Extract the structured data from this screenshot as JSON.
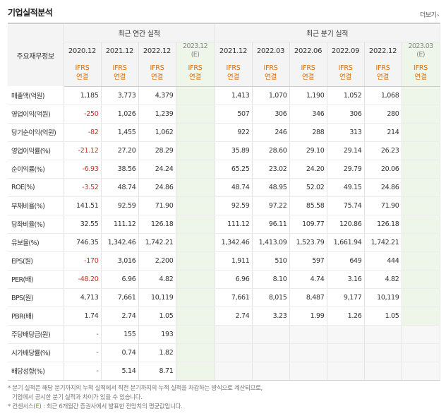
{
  "title": "기업실적분석",
  "more_label": "더보기",
  "header": {
    "item_label": "주요재무정보",
    "annual_group": "최근 연간 실적",
    "quarter_group": "최근 분기 실적",
    "annual_periods": [
      "2020.12",
      "2021.12",
      "2022.12",
      "2023.12"
    ],
    "annual_est_tag": "(E)",
    "quarter_periods": [
      "2021.12",
      "2022.03",
      "2022.06",
      "2022.09",
      "2022.12",
      "2023.03"
    ],
    "quarter_est_tag": "(E)",
    "ifrs_line1": "IFRS",
    "ifrs_line2": "연결"
  },
  "rows": [
    {
      "label": "매출액(억원)",
      "annual": [
        "1,185",
        "3,773",
        "4,379",
        ""
      ],
      "quarter": [
        "1,413",
        "1,070",
        "1,190",
        "1,052",
        "1,068",
        ""
      ]
    },
    {
      "label": "영업이익(억원)",
      "annual": [
        "-250",
        "1,026",
        "1,239",
        ""
      ],
      "quarter": [
        "507",
        "306",
        "346",
        "306",
        "280",
        ""
      ]
    },
    {
      "label": "당기순이익(억원)",
      "annual": [
        "-82",
        "1,455",
        "1,062",
        ""
      ],
      "quarter": [
        "922",
        "246",
        "288",
        "313",
        "214",
        ""
      ]
    },
    {
      "label": "영업이익률(%)",
      "annual": [
        "-21.12",
        "27.20",
        "28.29",
        ""
      ],
      "quarter": [
        "35.89",
        "28.60",
        "29.10",
        "29.14",
        "26.23",
        ""
      ]
    },
    {
      "label": "순이익률(%)",
      "annual": [
        "-6.93",
        "38.56",
        "24.24",
        ""
      ],
      "quarter": [
        "65.25",
        "23.02",
        "24.20",
        "29.79",
        "20.06",
        ""
      ]
    },
    {
      "label": "ROE(%)",
      "annual": [
        "-3.52",
        "48.74",
        "24.86",
        ""
      ],
      "quarter": [
        "48.74",
        "48.95",
        "52.02",
        "49.15",
        "24.86",
        ""
      ]
    },
    {
      "label": "부채비율(%)",
      "annual": [
        "141.51",
        "92.59",
        "71.90",
        ""
      ],
      "quarter": [
        "92.59",
        "97.22",
        "85.58",
        "75.74",
        "71.90",
        ""
      ]
    },
    {
      "label": "당좌비율(%)",
      "annual": [
        "32.55",
        "111.12",
        "126.18",
        ""
      ],
      "quarter": [
        "111.12",
        "96.11",
        "109.77",
        "120.86",
        "126.18",
        ""
      ]
    },
    {
      "label": "유보율(%)",
      "annual": [
        "746.35",
        "1,342.46",
        "1,742.21",
        ""
      ],
      "quarter": [
        "1,342.46",
        "1,413.09",
        "1,523.79",
        "1,661.94",
        "1,742.21",
        ""
      ]
    },
    {
      "label": "EPS(원)",
      "annual": [
        "-170",
        "3,016",
        "2,200",
        ""
      ],
      "quarter": [
        "1,911",
        "510",
        "597",
        "649",
        "444",
        ""
      ]
    },
    {
      "label": "PER(배)",
      "annual": [
        "-48.20",
        "6.96",
        "4.82",
        ""
      ],
      "quarter": [
        "6.96",
        "8.10",
        "4.74",
        "3.16",
        "4.82",
        ""
      ]
    },
    {
      "label": "BPS(원)",
      "annual": [
        "4,713",
        "7,661",
        "10,119",
        ""
      ],
      "quarter": [
        "7,661",
        "8,015",
        "8,487",
        "9,177",
        "10,119",
        ""
      ]
    },
    {
      "label": "PBR(배)",
      "annual": [
        "1.74",
        "2.74",
        "1.05",
        ""
      ],
      "quarter": [
        "2.74",
        "3.23",
        "1.99",
        "1.26",
        "1.05",
        ""
      ]
    },
    {
      "label": "주당배당금(원)",
      "annual": [
        "-",
        "155",
        "193",
        ""
      ],
      "quarter": [
        "",
        "",
        "",
        "",
        "",
        ""
      ]
    },
    {
      "label": "시가배당률(%)",
      "annual": [
        "-",
        "0.74",
        "1.82",
        ""
      ],
      "quarter": [
        "",
        "",
        "",
        "",
        "",
        ""
      ]
    },
    {
      "label": "배당성향(%)",
      "annual": [
        "-",
        "5.14",
        "8.71",
        ""
      ],
      "quarter": [
        "",
        "",
        "",
        "",
        "",
        ""
      ]
    }
  ],
  "notes": {
    "line1": "* 분기 실적은 해당 분기까지의 누적 실적에서 직전 분기까지의 누적 실적을 차감하는 방식으로 계산되므로,",
    "line2": "기업에서 공시한 분기 실적과 차이가 있을 수 있습니다.",
    "line3_prefix": "* 컨센서스(",
    "line3_e": "E",
    "line3_suffix": ") : 최근 6개월간 증권사에서 발표한 전망치의 평균값입니다."
  },
  "colors": {
    "ifrs": "#e06c00",
    "negative": "#d7261e",
    "estimate_bg": "#eef6ea"
  }
}
